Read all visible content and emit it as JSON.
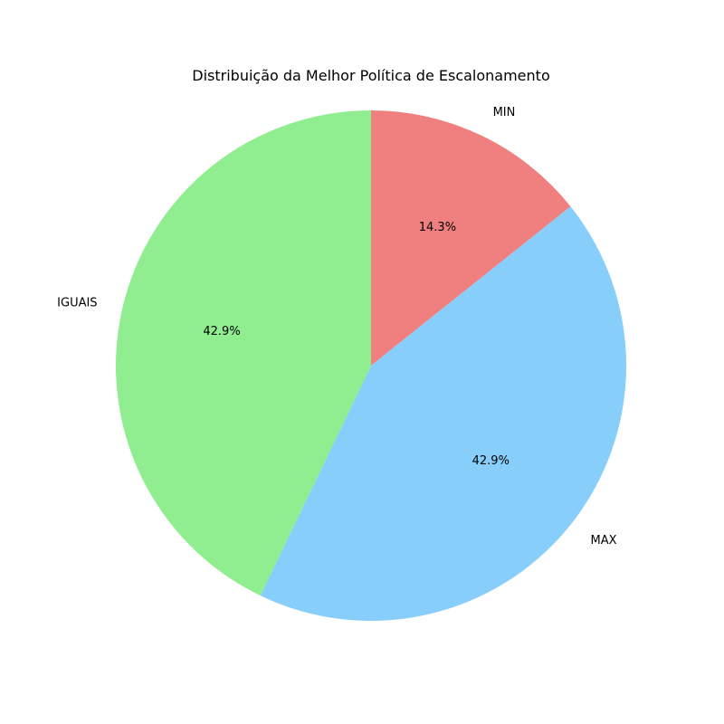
{
  "chart_data": {
    "type": "pie",
    "title": "Distribuição da Melhor Política de Escalonamento",
    "slices": [
      {
        "label": "MIN",
        "value": 14.3,
        "pct_label": "14.3%",
        "color": "#f08080"
      },
      {
        "label": "MAX",
        "value": 42.9,
        "pct_label": "42.9%",
        "color": "#87cefa"
      },
      {
        "label": "IGUAIS",
        "value": 42.9,
        "pct_label": "42.9%",
        "color": "#90ee90"
      }
    ],
    "start_angle_deg": 90,
    "direction": "clockwise"
  }
}
